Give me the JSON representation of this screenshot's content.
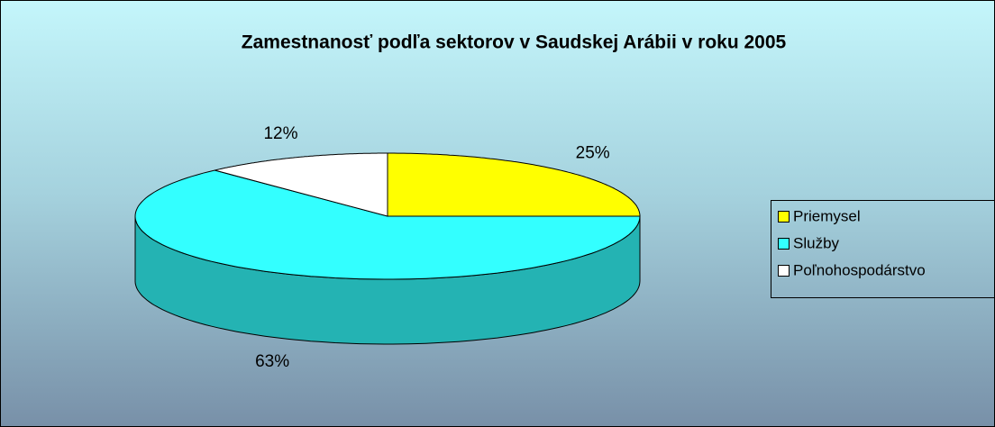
{
  "chart_data": {
    "type": "pie3d",
    "title": "Zamestnanosť podľa sektorov v Saudskej Arábii v roku 2005",
    "categories": [
      "Priemysel",
      "Služby",
      "Poľnohospodárstvo"
    ],
    "values": [
      25,
      63,
      12
    ],
    "value_labels": [
      "25%",
      "63%",
      "12%"
    ],
    "colors": [
      "#ffff00",
      "#33ffff",
      "#ffffff"
    ],
    "legend": "right"
  }
}
